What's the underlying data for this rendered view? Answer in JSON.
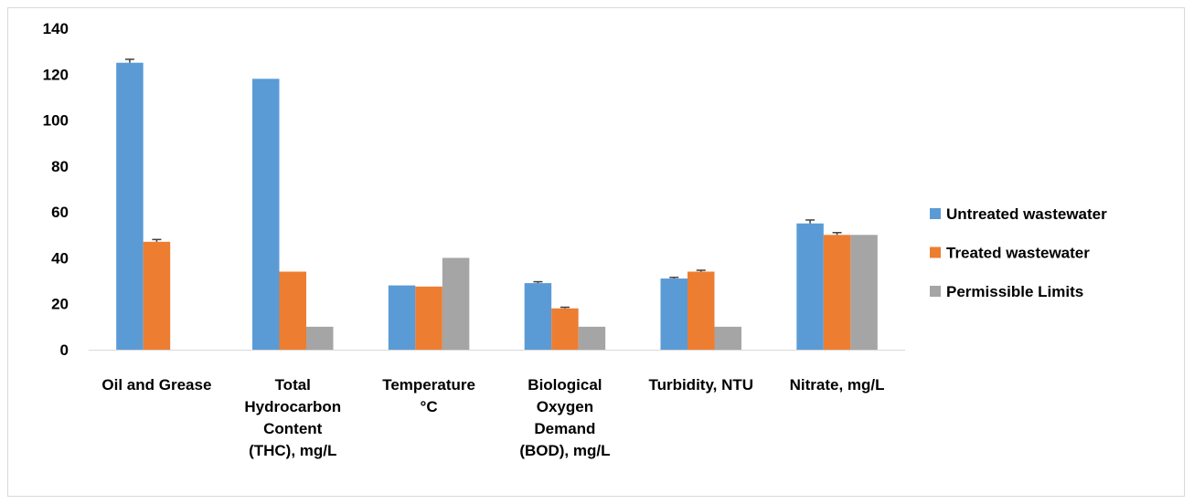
{
  "chart_data": {
    "type": "bar",
    "categories": [
      [
        "Oil and Grease"
      ],
      [
        "Total",
        "Hydrocarbon",
        "Content",
        "(THC), mg/L"
      ],
      [
        "Temperature",
        "°C"
      ],
      [
        "Biological",
        "Oxygen",
        "Demand",
        "(BOD), mg/L"
      ],
      [
        "Turbidity, NTU"
      ],
      [
        "Nitrate, mg/L"
      ]
    ],
    "series": [
      {
        "name": "Untreated wastewater",
        "color": "#5b9bd5",
        "values": [
          125,
          118,
          28,
          29,
          31,
          55
        ],
        "errors": [
          1.5,
          0,
          0,
          0.6,
          0.5,
          1.5
        ]
      },
      {
        "name": "Treated wastewater",
        "color": "#ed7d31",
        "values": [
          47,
          34,
          27.5,
          18,
          34,
          50
        ],
        "errors": [
          1,
          0,
          0,
          0.5,
          0.6,
          1
        ]
      },
      {
        "name": "Permissible Limits",
        "color": "#a5a5a5",
        "values": [
          null,
          10,
          40,
          10,
          10,
          50
        ],
        "errors": [
          0,
          0,
          0,
          0,
          0,
          0
        ]
      }
    ],
    "ylim": [
      0,
      140
    ],
    "yticks": [
      0,
      20,
      40,
      60,
      80,
      100,
      120,
      140
    ],
    "grid": false,
    "legend": "right",
    "title": "",
    "xlabel": "",
    "ylabel": ""
  }
}
